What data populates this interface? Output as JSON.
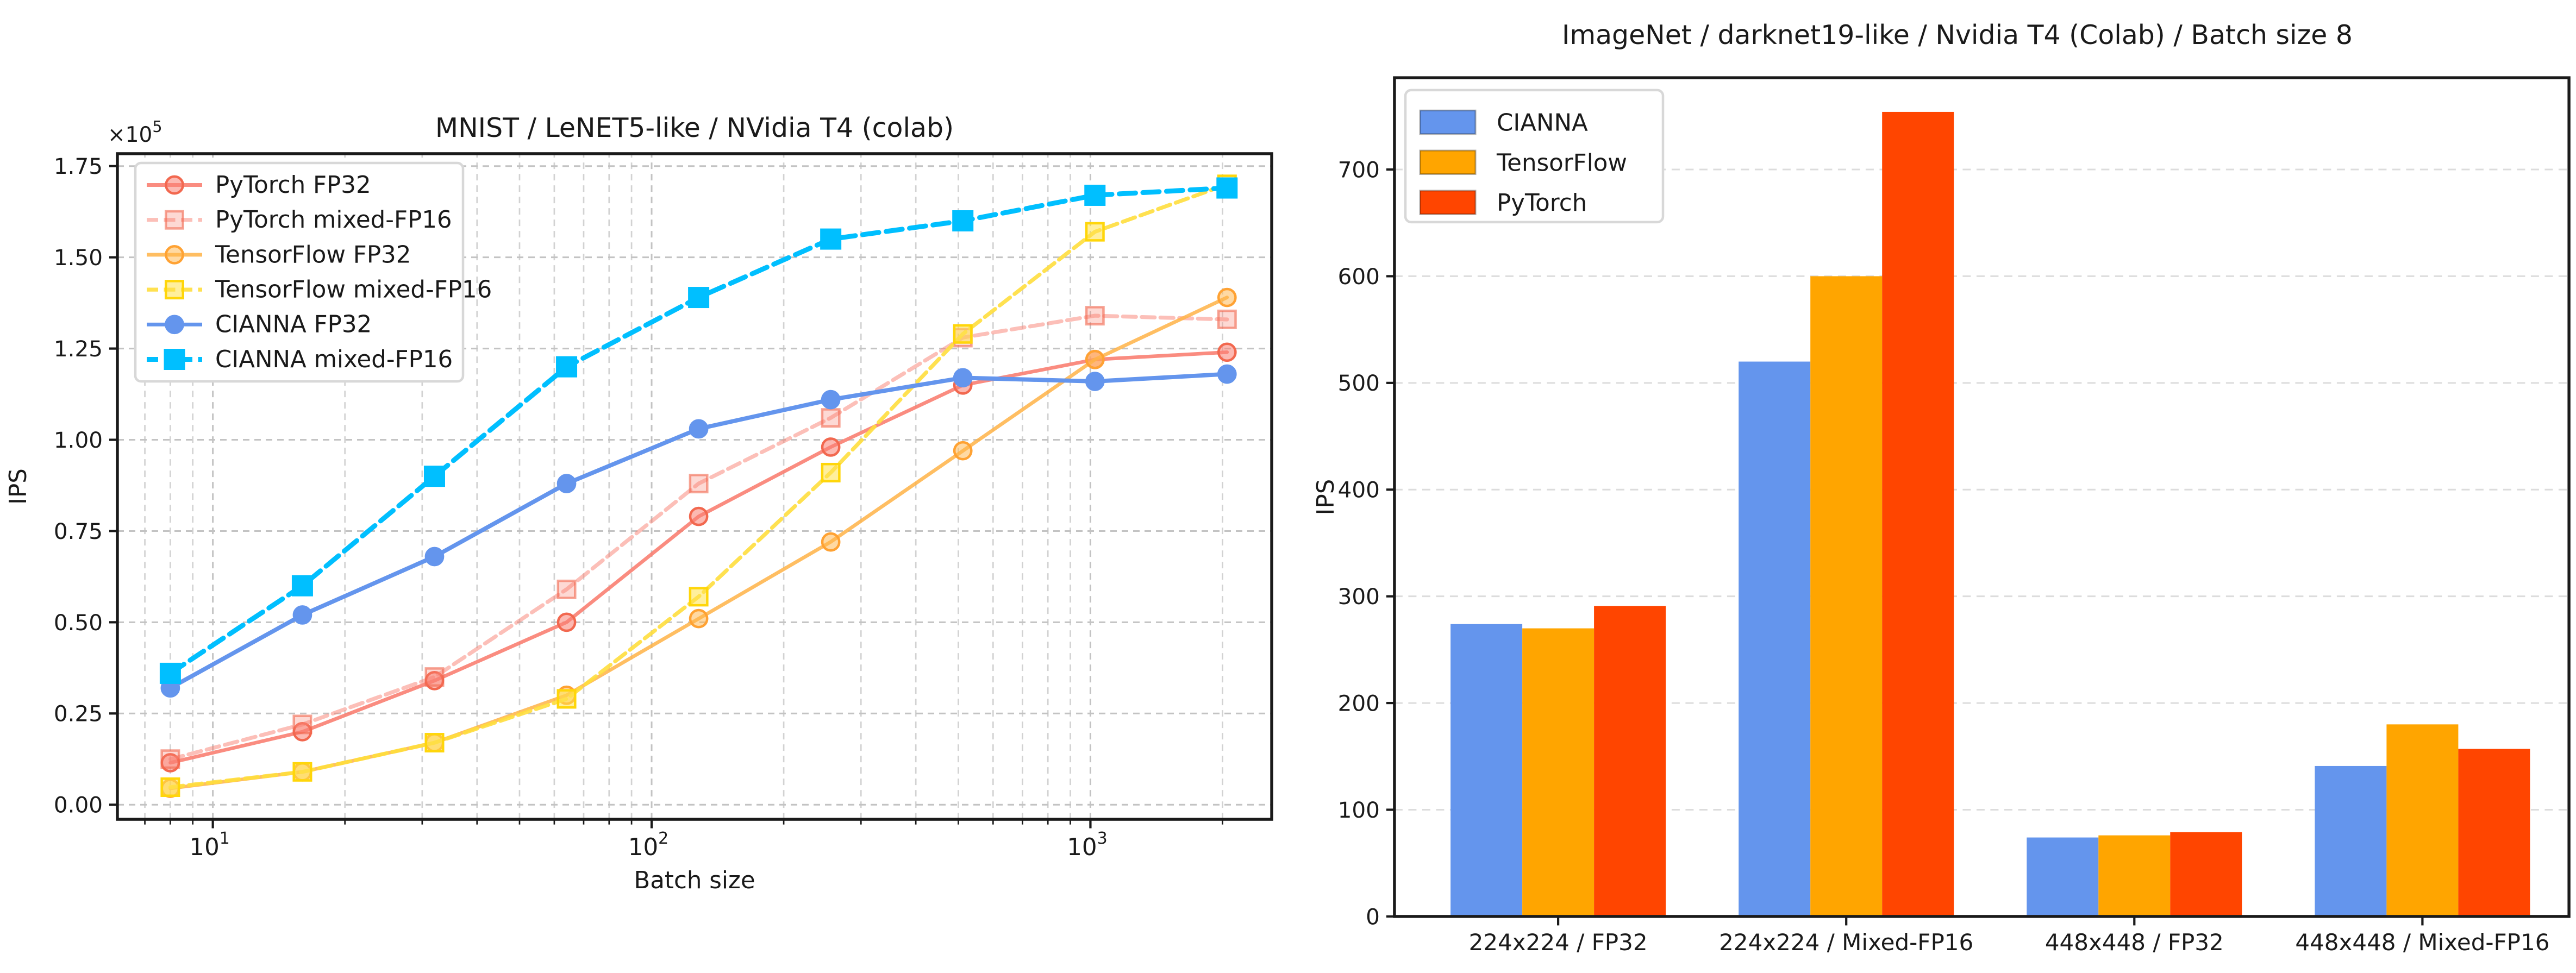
{
  "figure": {
    "background": "#ffffff"
  },
  "chart_data": [
    {
      "type": "line",
      "title": "MNIST / LeNET5-like / NVidia T4 (colab)",
      "xlabel": "Batch size",
      "ylabel": "IPS",
      "x_scale": "log",
      "grid": true,
      "legend_position": "upper left",
      "y_offset": {
        "base": "×10",
        "exp": "5"
      },
      "x": [
        8,
        16,
        32,
        64,
        128,
        256,
        512,
        1024,
        2048
      ],
      "xlim": [
        6.06,
        2589
      ],
      "ylim": [
        -0.04,
        1.784
      ],
      "xticks": [
        {
          "value": 10,
          "base": "10",
          "exp": "1"
        },
        {
          "value": 100,
          "base": "10",
          "exp": "2"
        },
        {
          "value": 1000,
          "base": "10",
          "exp": "3"
        }
      ],
      "yticks": [
        {
          "value": 0,
          "label": "0.00"
        },
        {
          "value": 0.25,
          "label": "0.25"
        },
        {
          "value": 0.5,
          "label": "0.50"
        },
        {
          "value": 0.75,
          "label": "0.75"
        },
        {
          "value": 1.0,
          "label": "1.00"
        },
        {
          "value": 1.25,
          "label": "1.25"
        },
        {
          "value": 1.5,
          "label": "1.50"
        },
        {
          "value": 1.75,
          "label": "1.75"
        }
      ],
      "series": [
        {
          "name": "PyTorch FP32",
          "marker": "circle",
          "line": "solid",
          "color": "#FA8072",
          "line_color": "rgba(250,128,114,0.9)",
          "marker_fill": "rgba(250,128,114,0.55)",
          "marker_edge": "#F2684F",
          "values": [
            0.115,
            0.2,
            0.34,
            0.5,
            0.79,
            0.98,
            1.15,
            1.22,
            1.24
          ]
        },
        {
          "name": "PyTorch mixed-FP16",
          "marker": "square",
          "line": "dashed",
          "color": "#FA8072",
          "line_color": "rgba(250,128,114,0.5)",
          "marker_fill": "rgba(250,128,114,0.3)",
          "marker_edge": "rgba(242,104,79,0.6)",
          "values": [
            0.125,
            0.22,
            0.35,
            0.59,
            0.88,
            1.06,
            1.28,
            1.34,
            1.33
          ]
        },
        {
          "name": "TensorFlow FP32",
          "marker": "circle",
          "line": "solid",
          "color": "#FFB347",
          "line_color": "rgba(255,179,71,0.85)",
          "marker_fill": "rgba(255,179,71,0.5)",
          "marker_edge": "#FFA233",
          "values": [
            0.045,
            0.09,
            0.17,
            0.3,
            0.51,
            0.72,
            0.97,
            1.22,
            1.39
          ]
        },
        {
          "name": "TensorFlow mixed-FP16",
          "marker": "square",
          "line": "dashed",
          "color": "#FFE14D",
          "line_color": "rgba(255,222,61,0.9)",
          "marker_fill": "rgba(255,225,77,0.55)",
          "marker_edge": "#FFD60A",
          "values": [
            0.048,
            0.09,
            0.17,
            0.29,
            0.57,
            0.91,
            1.29,
            1.57,
            1.7
          ]
        },
        {
          "name": "CIANNA FP32",
          "marker": "circle",
          "line": "solid",
          "color": "#6495ED",
          "line_color": "#6495ED",
          "marker_fill": "#6495ED",
          "marker_edge": "#6495ED",
          "values": [
            0.32,
            0.52,
            0.68,
            0.88,
            1.03,
            1.11,
            1.17,
            1.16,
            1.18
          ]
        },
        {
          "name": "CIANNA mixed-FP16",
          "marker": "square",
          "line": "dashed",
          "color": "#00BFFF",
          "line_color": "#00BFFF",
          "marker_fill": "#00BFFF",
          "marker_edge": "#00BFFF",
          "values": [
            0.36,
            0.6,
            0.9,
            1.2,
            1.39,
            1.55,
            1.6,
            1.67,
            1.69
          ]
        }
      ]
    },
    {
      "type": "bar",
      "title": "ImageNet / darknet19-like / Nvidia T4 (Colab) / Batch size 8",
      "ylabel": "IPS",
      "legend_position": "upper left",
      "categories": [
        "224x224 / FP32",
        "224x224 / Mixed-FP16",
        "448x448 / FP32",
        "448x448 / Mixed-FP16"
      ],
      "ylim": [
        0,
        786
      ],
      "yticks": [
        {
          "value": 0,
          "label": "0"
        },
        {
          "value": 100,
          "label": "100"
        },
        {
          "value": 200,
          "label": "200"
        },
        {
          "value": 300,
          "label": "300"
        },
        {
          "value": 400,
          "label": "400"
        },
        {
          "value": 500,
          "label": "500"
        },
        {
          "value": 600,
          "label": "600"
        },
        {
          "value": 700,
          "label": "700"
        }
      ],
      "series": [
        {
          "name": "CIANNA",
          "color": "#6495ED",
          "values": [
            274,
            520,
            74,
            141
          ]
        },
        {
          "name": "TensorFlow",
          "color": "#FFA500",
          "values": [
            270,
            600,
            76,
            180
          ]
        },
        {
          "name": "PyTorch",
          "color": "#FF4500",
          "values": [
            291,
            754,
            79,
            157
          ]
        }
      ]
    }
  ]
}
